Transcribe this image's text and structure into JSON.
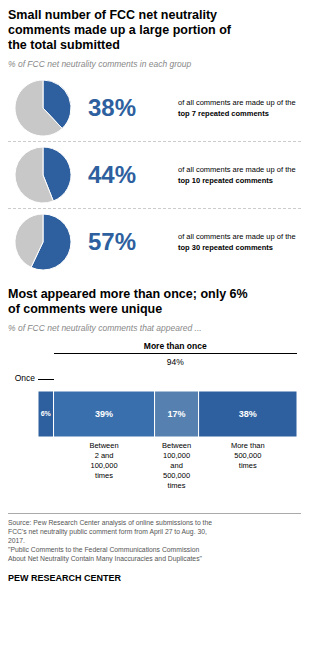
{
  "chart_data": [
    {
      "type": "pie",
      "title": "Small number of FCC net neutrality\ncomments made up a large portion of\nthe total submitted",
      "subtitle": "% of FCC net neutrality comments in each group",
      "values": [
        38,
        62
      ],
      "colors": [
        "#2E5F9E",
        "#C8C8C8"
      ],
      "annotations": [
        "38%",
        "of all comments are made up of the",
        "top 7 repeated comments"
      ]
    },
    {
      "type": "pie",
      "values": [
        44,
        56
      ],
      "colors": [
        "#2E5F9E",
        "#C8C8C8"
      ],
      "annotations": [
        "44%",
        "of all comments are made up of the",
        "top 10 repeated comments"
      ]
    },
    {
      "type": "pie",
      "values": [
        57,
        43
      ],
      "colors": [
        "#2E5F9E",
        "#C8C8C8"
      ],
      "annotations": [
        "57%",
        "of all comments are made up of the",
        "top 30 repeated comments"
      ]
    },
    {
      "type": "bar",
      "title": "Most appeared more than once; only 6%\nof comments were unique",
      "subtitle": "% of FCC net neutrality comments that appeared ...",
      "orientation": "horizontal",
      "stacked": true,
      "data_labels": true,
      "tick_labels": false,
      "categories": [
        null
      ],
      "xlim": [
        0,
        100
      ],
      "series": [
        {
          "name": "Once",
          "color": "#2E5F9E",
          "values": [
            6
          ],
          "value_labels": [
            "6%"
          ]
        },
        {
          "name": "Between\n2 and\n100,000\ntimes",
          "color": "#3A6FAD",
          "values": [
            39
          ],
          "value_labels": [
            "39%"
          ]
        },
        {
          "name": "Between\n100,000\nand\n500,000\ntimes",
          "color": "#5580B0",
          "values": [
            17
          ],
          "value_labels": [
            "17%"
          ]
        },
        {
          "name": "More than\n500,000\ntimes",
          "color": "#2E5F9E",
          "values": [
            38
          ],
          "value_labels": [
            "38%"
          ]
        }
      ],
      "annotations": [
        "More than once",
        "94%",
        "Source: Pew Research Center analysis of online submissions to the\nFCC's net neutrality public comment form from April 27 to Aug. 30,\n2017.\n\"Public Comments to the Federal Communications Commission\nAbout Net Neutrality Contain Many Inaccuracies and Duplicates\"",
        "PEW RESEARCH CENTER"
      ]
    }
  ]
}
